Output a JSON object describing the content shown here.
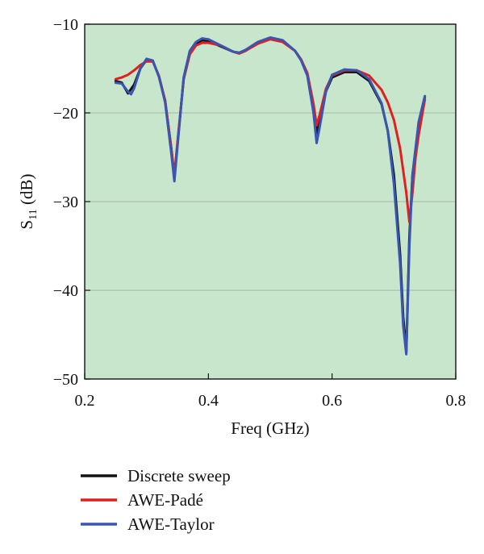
{
  "chart_data": {
    "type": "line",
    "title": "",
    "xlabel": "Freq (GHz)",
    "ylabel_main": "S",
    "ylabel_sub": "11",
    "ylabel_unit": " (dB)",
    "xlim": [
      0.2,
      0.8
    ],
    "ylim": [
      -50,
      -10
    ],
    "xticks": [
      0.2,
      0.4,
      0.6,
      0.8
    ],
    "xtick_labels": [
      "0.2",
      "0.4",
      "0.6",
      "0.8"
    ],
    "yticks": [
      -10,
      -20,
      -30,
      -40,
      -50
    ],
    "ytick_labels": [
      "−10",
      "−20",
      "−30",
      "−40",
      "−50"
    ],
    "grid": "horizontal",
    "plot_background": "#c8e6cc",
    "legend_position": "below",
    "series": [
      {
        "name": "Discrete sweep",
        "color": "#111111",
        "x": [
          0.25,
          0.26,
          0.27,
          0.28,
          0.29,
          0.3,
          0.31,
          0.32,
          0.33,
          0.34,
          0.345,
          0.35,
          0.36,
          0.37,
          0.38,
          0.39,
          0.4,
          0.42,
          0.44,
          0.45,
          0.46,
          0.48,
          0.5,
          0.52,
          0.54,
          0.55,
          0.56,
          0.57,
          0.575,
          0.58,
          0.59,
          0.6,
          0.62,
          0.64,
          0.66,
          0.68,
          0.69,
          0.7,
          0.71,
          0.715,
          0.72,
          0.725,
          0.73,
          0.74,
          0.75
        ],
        "y": [
          -16.4,
          -16.6,
          -17.8,
          -16.8,
          -15.0,
          -14.0,
          -14.1,
          -15.9,
          -18.6,
          -24.0,
          -27.3,
          -23.5,
          -16.2,
          -13.3,
          -12.2,
          -11.8,
          -11.9,
          -12.5,
          -13.1,
          -13.3,
          -13.0,
          -12.1,
          -11.6,
          -11.9,
          -13.0,
          -14.0,
          -15.6,
          -19.3,
          -22.3,
          -20.9,
          -17.6,
          -16.0,
          -15.4,
          -15.4,
          -16.4,
          -19.0,
          -22.0,
          -27.0,
          -36.0,
          -43.0,
          -47.0,
          -34.0,
          -27.0,
          -21.3,
          -18.2
        ]
      },
      {
        "name": "AWE-Padé",
        "color": "#e02020",
        "x": [
          0.25,
          0.26,
          0.27,
          0.28,
          0.29,
          0.3,
          0.31,
          0.32,
          0.33,
          0.34,
          0.345,
          0.35,
          0.36,
          0.37,
          0.38,
          0.39,
          0.4,
          0.42,
          0.44,
          0.45,
          0.46,
          0.48,
          0.5,
          0.52,
          0.54,
          0.55,
          0.56,
          0.57,
          0.575,
          0.58,
          0.59,
          0.6,
          0.62,
          0.64,
          0.66,
          0.68,
          0.69,
          0.7,
          0.71,
          0.72,
          0.725,
          0.73,
          0.735,
          0.74,
          0.75
        ],
        "y": [
          -16.2,
          -16.0,
          -15.7,
          -15.2,
          -14.6,
          -14.2,
          -14.2,
          -15.8,
          -18.6,
          -24.0,
          -27.0,
          -23.3,
          -16.2,
          -13.4,
          -12.4,
          -12.1,
          -12.1,
          -12.4,
          -13.1,
          -13.3,
          -13.0,
          -12.2,
          -11.7,
          -12.0,
          -13.0,
          -14.0,
          -15.5,
          -19.0,
          -21.4,
          -20.2,
          -17.3,
          -15.8,
          -15.2,
          -15.2,
          -15.8,
          -17.4,
          -18.8,
          -20.8,
          -24.0,
          -29.0,
          -32.3,
          -29.0,
          -25.0,
          -22.5,
          -18.5
        ]
      },
      {
        "name": "AWE-Taylor",
        "color": "#3a56b0",
        "x": [
          0.25,
          0.26,
          0.27,
          0.275,
          0.28,
          0.29,
          0.3,
          0.31,
          0.32,
          0.33,
          0.34,
          0.345,
          0.35,
          0.36,
          0.37,
          0.38,
          0.39,
          0.4,
          0.42,
          0.44,
          0.45,
          0.46,
          0.48,
          0.5,
          0.52,
          0.54,
          0.55,
          0.56,
          0.57,
          0.575,
          0.58,
          0.59,
          0.6,
          0.62,
          0.64,
          0.66,
          0.68,
          0.69,
          0.7,
          0.71,
          0.715,
          0.72,
          0.725,
          0.73,
          0.74,
          0.75
        ],
        "y": [
          -16.6,
          -16.7,
          -17.6,
          -17.9,
          -17.2,
          -15.0,
          -13.9,
          -14.1,
          -15.9,
          -18.8,
          -24.5,
          -27.7,
          -23.8,
          -16.0,
          -13.0,
          -12.0,
          -11.6,
          -11.7,
          -12.4,
          -13.1,
          -13.2,
          -12.9,
          -12.0,
          -11.5,
          -11.8,
          -13.0,
          -14.1,
          -15.8,
          -20.0,
          -23.4,
          -21.6,
          -17.6,
          -15.7,
          -15.1,
          -15.2,
          -16.2,
          -18.9,
          -22.0,
          -28.0,
          -37.0,
          -44.0,
          -47.2,
          -35.0,
          -27.0,
          -21.0,
          -18.1
        ]
      }
    ]
  }
}
